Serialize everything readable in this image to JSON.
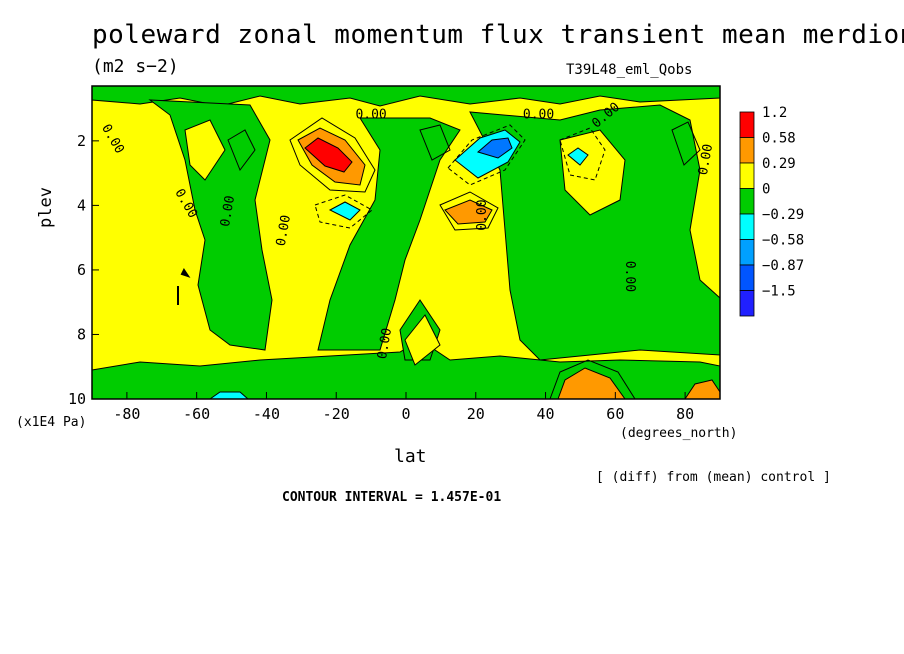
{
  "chart_data": {
    "type": "heatmap",
    "title": "poleward zonal momentum flux transient mean merdional",
    "subtitle": "(m2 s−2)",
    "run_label": "T39L48_eml_Qobs",
    "xlabel": "lat",
    "x_units": "(degrees_north)",
    "ylabel": "plev",
    "y_units": "(x1E4 Pa)",
    "x_range": [
      -90,
      90
    ],
    "y_range": [
      0.3,
      10
    ],
    "y_inverted": true,
    "x_ticks": [
      "-80",
      "-60",
      "-40",
      "-20",
      "0",
      "20",
      "40",
      "60",
      "80"
    ],
    "y_ticks": [
      "2",
      "4",
      "6",
      "8",
      "10"
    ],
    "contour_labels": [
      "0.00"
    ],
    "legend": {
      "placement": "right",
      "levels": [
        "1.2",
        "0.58",
        "0.29",
        "0",
        "−0.29",
        "−0.58",
        "−0.87",
        "−1.5"
      ],
      "colors": [
        "#ff0000",
        "#ff9900",
        "#ffff00",
        "#00cc00",
        "#00ffff",
        "#00a0ff",
        "#0055ff",
        "#2020ff"
      ]
    },
    "features": [
      {
        "lat": -22,
        "plev": 2.3,
        "value": 1.0
      },
      {
        "lat": 26,
        "plev": 2.2,
        "value": -1.0
      },
      {
        "lat": 17,
        "plev": 4.0,
        "value": 0.35
      },
      {
        "lat": -18,
        "plev": 4.0,
        "value": -0.4
      },
      {
        "lat": 48,
        "plev": 2.5,
        "value": -0.4
      },
      {
        "lat": 50,
        "plev": 9.7,
        "value": 0.45
      },
      {
        "lat": -50,
        "plev": 9.9,
        "value": -0.35
      }
    ],
    "footnote": "[ (diff) from (mean) control ]",
    "contour_interval": "CONTOUR INTERVAL = 1.457E-01"
  }
}
